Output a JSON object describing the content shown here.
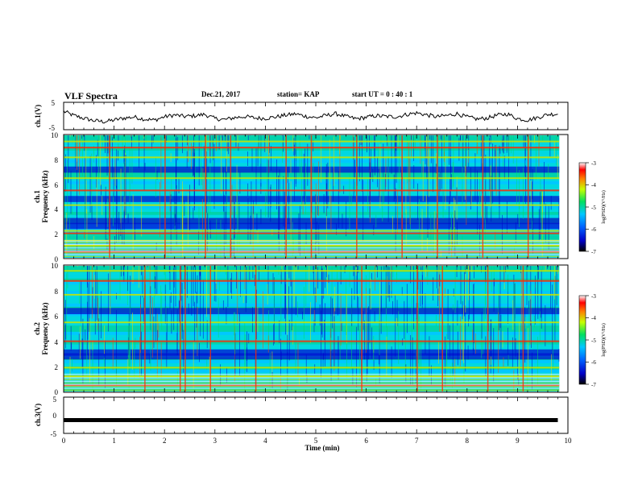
{
  "header": {
    "title": "VLF Spectra",
    "date": "Dec.21, 2017",
    "station": "station= KAP",
    "start": "start  UT =   0 : 40 : 1"
  },
  "chart_data": [
    {
      "type": "line",
      "panel": "ch1-waveform",
      "ylabel": "ch.1(V)",
      "ylim": [
        -5,
        5
      ],
      "yticks": [
        "5",
        "-5"
      ],
      "xlim": [
        0,
        10
      ],
      "x": [
        0.0,
        0.2,
        0.4,
        0.6,
        0.8,
        1.0,
        1.2,
        1.4,
        1.6,
        1.8,
        2.0,
        2.2,
        2.4,
        2.6,
        2.8,
        3.0,
        3.2,
        3.4,
        3.6,
        3.8,
        4.0,
        4.2,
        4.4,
        4.6,
        4.8,
        5.0,
        5.2,
        5.4,
        5.6,
        5.8,
        6.0,
        6.2,
        6.4,
        6.6,
        6.8,
        7.0,
        7.2,
        7.4,
        7.6,
        7.8,
        8.0,
        8.2,
        8.4,
        8.6,
        8.8,
        9.0,
        9.2,
        9.4,
        9.6,
        9.8
      ],
      "values": [
        1.8,
        0.2,
        -0.9,
        -1.8,
        -2.2,
        -1.6,
        -0.8,
        -0.4,
        -1.2,
        -1.6,
        -0.3,
        0.4,
        -0.2,
        0.1,
        0.6,
        -1.0,
        -1.4,
        -0.6,
        -0.2,
        -0.8,
        -0.9,
        -0.4,
        0.3,
        0.8,
        -0.1,
        -0.7,
        0.2,
        0.9,
        -0.2,
        -1.1,
        -0.5,
        0.1,
        -0.2,
        -0.3,
        0.6,
        1.2,
        0.4,
        -0.3,
        0.2,
        0.9,
        -0.4,
        -1.2,
        -0.8,
        0.3,
        0.8,
        -1.0,
        -1.6,
        -0.6,
        0.6,
        0.8
      ]
    },
    {
      "type": "heatmap",
      "panel": "ch1-spectrogram",
      "xlim": [
        0,
        10
      ],
      "ylim": [
        0,
        10
      ],
      "yticks": [
        "0",
        "2",
        "4",
        "6",
        "8",
        "10"
      ],
      "ylabel_line1": "ch.1",
      "ylabel_line2": "Frequency  (kHz)",
      "colorbar": {
        "label": "log(PSD)(V²/Hz)",
        "range": [
          -7,
          -3
        ],
        "ticks": [
          "-3",
          "-4",
          "-5",
          "-6",
          "-7"
        ]
      },
      "hot_bands_khz": [
        0.5,
        1.0,
        1.4,
        2.0,
        2.2,
        4.3,
        5.5,
        6.5,
        8.2,
        9.0,
        9.5
      ],
      "cool_bands_khz": [
        3.0,
        4.8,
        2.6,
        7.2
      ],
      "hot_lines_min": [
        0.9,
        2.0,
        2.8,
        3.3,
        4.4,
        4.9,
        5.8,
        6.7,
        7.4,
        8.3,
        9.2
      ]
    },
    {
      "type": "heatmap",
      "panel": "ch2-spectrogram",
      "xlim": [
        0,
        10
      ],
      "ylim": [
        0,
        10
      ],
      "yticks": [
        "0",
        "2",
        "4",
        "6",
        "8",
        "10"
      ],
      "ylabel_line1": "ch.2",
      "ylabel_line2": "Frequency  (kHz)",
      "colorbar": {
        "label": "log(PSD)(V²/Hz)",
        "range": [
          -7,
          -3
        ],
        "ticks": [
          "-3",
          "-4",
          "-5",
          "-6",
          "-7"
        ]
      },
      "hot_bands_khz": [
        0.5,
        1.2,
        1.9,
        4.0,
        5.5,
        7.7,
        8.8,
        9.6
      ],
      "cool_bands_khz": [
        2.8,
        3.1,
        6.4
      ],
      "hot_lines_min": [
        1.6,
        2.3,
        2.4,
        2.9,
        3.8,
        5.9,
        7.0,
        7.5,
        8.4,
        9.1
      ]
    },
    {
      "type": "line",
      "panel": "ch3-waveform",
      "ylabel": "ch.3(V)",
      "ylim": [
        -5,
        5
      ],
      "yticks": [
        "5",
        "0",
        "-5"
      ],
      "xlim": [
        0,
        10
      ],
      "x": [
        0,
        9.8
      ],
      "values": [
        -1.5,
        -1.5
      ]
    }
  ],
  "xaxis": {
    "label": "Time  (min)",
    "ticks": [
      "0",
      "1",
      "2",
      "3",
      "4",
      "5",
      "6",
      "7",
      "8",
      "9",
      "10"
    ]
  }
}
